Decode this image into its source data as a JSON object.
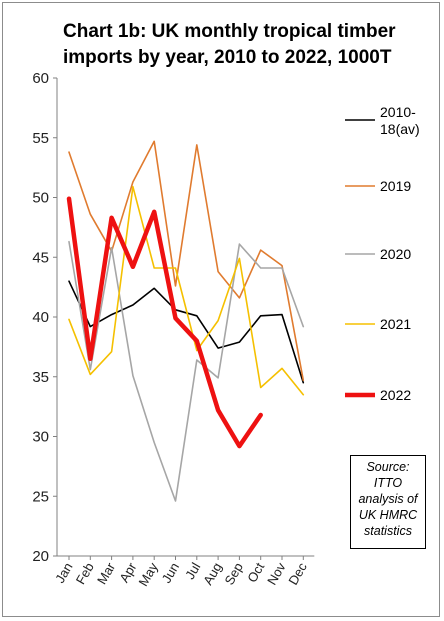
{
  "chart_data": {
    "type": "line",
    "title_lines": [
      "Chart 1b: UK monthly tropical timber",
      "imports by year, 2010 to 2022, 1000T"
    ],
    "categories": [
      "Jan",
      "Feb",
      "Mar",
      "Apr",
      "May",
      "Jun",
      "Jul",
      "Aug",
      "Sep",
      "Oct",
      "Nov",
      "Dec"
    ],
    "ylim": [
      20,
      60
    ],
    "yticks": [
      20,
      25,
      30,
      35,
      40,
      45,
      50,
      55,
      60
    ],
    "grid": false,
    "legend_position": "right",
    "series": [
      {
        "name_lines": [
          "2010-",
          "18(av)"
        ],
        "color": "#000000",
        "values": [
          43.0,
          39.2,
          40.2,
          41.0,
          42.4,
          40.6,
          40.1,
          37.4,
          37.9,
          40.1,
          40.2,
          34.5
        ]
      },
      {
        "name_lines": [
          "2019"
        ],
        "color": "#e07b2f",
        "values": [
          53.8,
          48.6,
          45.5,
          51.3,
          54.7,
          42.6,
          54.4,
          43.8,
          41.6,
          45.6,
          44.3,
          34.7
        ]
      },
      {
        "name_lines": [
          "2020"
        ],
        "color": "#a6a6a6",
        "values": [
          46.3,
          35.6,
          45.8,
          35.1,
          29.5,
          24.6,
          36.4,
          34.9,
          46.1,
          44.1,
          44.1,
          39.2
        ]
      },
      {
        "name_lines": [
          "2021"
        ],
        "color": "#f5c000",
        "values": [
          39.8,
          35.2,
          37.1,
          50.9,
          44.1,
          44.1,
          37.2,
          39.7,
          44.9,
          34.1,
          35.7,
          33.5
        ]
      },
      {
        "name_lines": [
          "2022"
        ],
        "color": "#ee1111",
        "values": [
          49.9,
          36.5,
          48.3,
          44.2,
          48.8,
          39.9,
          38.0,
          32.2,
          29.2,
          31.8,
          null,
          null
        ]
      }
    ],
    "source_lines": [
      "Source:",
      "ITTO",
      "analysis of",
      "UK HMRC",
      "statistics"
    ]
  }
}
